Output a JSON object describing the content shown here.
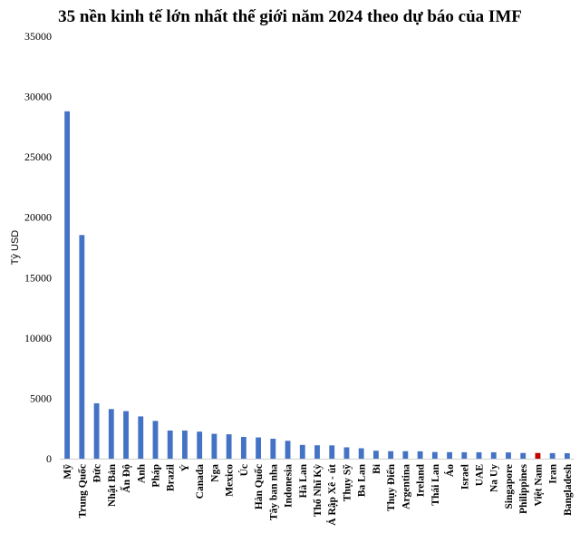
{
  "chart_data": {
    "type": "bar",
    "title": "35 nền kinh tế lớn nhất thế giới năm 2024 theo dự báo của IMF",
    "xlabel": "",
    "ylabel": "Tỷ USD",
    "ylim": [
      0,
      35000
    ],
    "yticks": [
      "0",
      "5000",
      "10000",
      "15000",
      "20000",
      "25000",
      "30000",
      "35000"
    ],
    "grid": false,
    "legend": "none",
    "colors": {
      "default": "#4472C4",
      "highlight": "#C00000"
    },
    "highlight_category": "Việt Nam",
    "categories": [
      "Mỹ",
      "Trung Quốc",
      "Đức",
      "Nhật Bản",
      "Ấn Độ",
      "Anh",
      "Pháp",
      "Brazil",
      "Ý",
      "Canada",
      "Nga",
      "Mexico",
      "Úc",
      "Hàn Quốc",
      "Tây ban nha",
      "Indonesia",
      "Hà Lan",
      "Thổ Nhĩ Kỳ",
      "Ả Rập Xê - út",
      "Thụy Sỹ",
      "Ba Lan",
      "Bỉ",
      "Thụy Điển",
      "Argentina",
      "Ireland",
      "Thái Lan",
      "Áo",
      "Israel",
      "UAE",
      "Na Uy",
      "Singapore",
      "Philippines",
      "Việt Nam",
      "Iran",
      "Bangladesh"
    ],
    "values": [
      28780,
      18530,
      4590,
      4110,
      3940,
      3500,
      3130,
      2330,
      2330,
      2240,
      2060,
      2020,
      1800,
      1760,
      1650,
      1480,
      1140,
      1110,
      1100,
      940,
      860,
      660,
      620,
      620,
      610,
      550,
      540,
      530,
      530,
      530,
      520,
      470,
      470,
      460,
      450
    ]
  }
}
